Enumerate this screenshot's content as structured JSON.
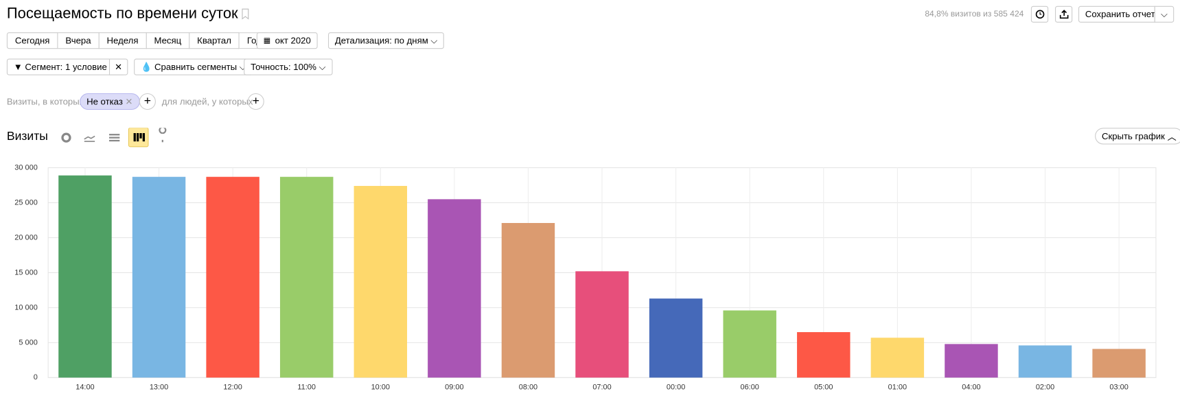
{
  "header": {
    "title": "Посещаемость по времени суток",
    "stats": "84,8% визитов из 585 424",
    "save_button": "Сохранить отчет"
  },
  "periods": [
    "Сегодня",
    "Вчера",
    "Неделя",
    "Месяц",
    "Квартал",
    "Год"
  ],
  "date_button": "окт 2020",
  "detail_button": "Детализация: по дням",
  "segment_button": "Сегмент: 1 условие",
  "compare_button": "Сравнить сегменты",
  "accuracy_button": "Точность: 100%",
  "filter": {
    "prefix": "Визиты, в которых",
    "tag": "Не отказ",
    "people": "для людей, у которых"
  },
  "metric_title": "Визиты",
  "hide_chart_button": "Скрыть график",
  "chart_data": {
    "type": "bar",
    "categories": [
      "14:00",
      "13:00",
      "12:00",
      "11:00",
      "10:00",
      "09:00",
      "08:00",
      "07:00",
      "00:00",
      "06:00",
      "05:00",
      "01:00",
      "04:00",
      "02:00",
      "03:00"
    ],
    "values": [
      28900,
      28700,
      28700,
      28700,
      27400,
      25500,
      22100,
      15200,
      11300,
      9600,
      6500,
      5700,
      4800,
      4600,
      4100
    ],
    "colors": [
      "#4fa064",
      "#79b6e3",
      "#fd5846",
      "#99cc69",
      "#fed86c",
      "#a955b4",
      "#db9b70",
      "#e74f7b",
      "#4569b9",
      "#99cc69",
      "#fd5846",
      "#fed86c",
      "#a955b4",
      "#79b6e3",
      "#db9b70"
    ],
    "ylim": [
      0,
      30000
    ],
    "yticks": [
      0,
      {
        "value": 5000,
        "label": "5 000"
      },
      {
        "value": 10000,
        "label": "10 000"
      },
      {
        "value": 15000,
        "label": "15 000"
      },
      {
        "value": 20000,
        "label": "20 000"
      },
      {
        "value": 25000,
        "label": "25 000"
      },
      {
        "value": 30000,
        "label": "30 000"
      }
    ],
    "grid": true
  }
}
